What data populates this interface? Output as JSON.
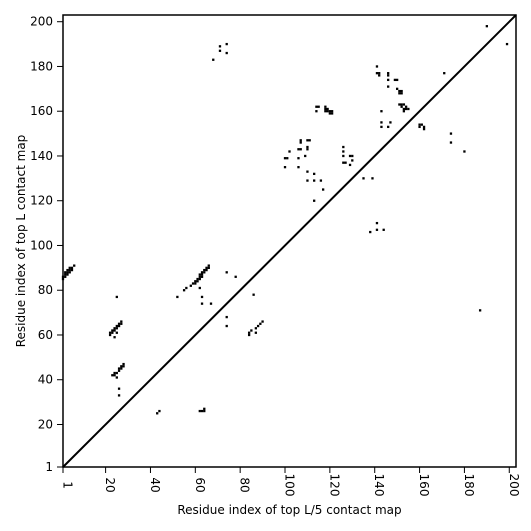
{
  "chart_data": {
    "type": "scatter",
    "xlabel": "Residue index of top L/5 contact map",
    "ylabel": "Residue index of top L contact map",
    "xlim": [
      1,
      203
    ],
    "ylim": [
      1,
      203
    ],
    "xticks": [
      1,
      20,
      40,
      60,
      80,
      100,
      120,
      140,
      160,
      180,
      200
    ],
    "yticks": [
      1,
      20,
      40,
      60,
      80,
      100,
      120,
      140,
      160,
      180,
      200
    ],
    "grid": false,
    "diagonal": true,
    "marker_color": "#000000",
    "series": [
      {
        "points": [
          [
            1,
            85
          ],
          [
            1,
            86
          ],
          [
            2,
            86
          ],
          [
            2,
            87
          ],
          [
            2,
            88
          ],
          [
            3,
            87
          ],
          [
            3,
            88
          ],
          [
            3,
            89
          ],
          [
            4,
            88
          ],
          [
            4,
            89
          ],
          [
            4,
            90
          ],
          [
            5,
            89
          ],
          [
            5,
            90
          ],
          [
            6,
            91
          ],
          [
            22,
            60
          ],
          [
            22,
            61
          ],
          [
            23,
            61
          ],
          [
            23,
            62
          ],
          [
            24,
            62
          ],
          [
            24,
            63
          ],
          [
            24,
            59
          ],
          [
            25,
            63
          ],
          [
            25,
            64
          ],
          [
            26,
            64
          ],
          [
            26,
            65
          ],
          [
            27,
            65
          ],
          [
            27,
            66
          ],
          [
            25,
            61
          ],
          [
            23,
            42
          ],
          [
            24,
            42
          ],
          [
            24,
            43
          ],
          [
            25,
            43
          ],
          [
            25,
            41
          ],
          [
            26,
            44
          ],
          [
            26,
            45
          ],
          [
            27,
            45
          ],
          [
            27,
            46
          ],
          [
            28,
            46
          ],
          [
            28,
            47
          ],
          [
            26,
            36
          ],
          [
            26,
            33
          ],
          [
            25,
            77
          ],
          [
            43,
            25
          ],
          [
            44,
            26
          ],
          [
            52,
            77
          ],
          [
            55,
            80
          ],
          [
            56,
            81
          ],
          [
            58,
            82
          ],
          [
            59,
            83
          ],
          [
            60,
            83
          ],
          [
            60,
            84
          ],
          [
            61,
            84
          ],
          [
            61,
            85
          ],
          [
            62,
            85
          ],
          [
            62,
            86
          ],
          [
            62,
            87
          ],
          [
            63,
            86
          ],
          [
            63,
            87
          ],
          [
            63,
            88
          ],
          [
            64,
            88
          ],
          [
            64,
            89
          ],
          [
            65,
            89
          ],
          [
            65,
            90
          ],
          [
            66,
            90
          ],
          [
            66,
            91
          ],
          [
            62,
            81
          ],
          [
            63,
            77
          ],
          [
            63,
            74
          ],
          [
            67,
            74
          ],
          [
            62,
            26
          ],
          [
            63,
            26
          ],
          [
            64,
            26
          ],
          [
            64,
            27
          ],
          [
            68,
            183
          ],
          [
            71,
            187
          ],
          [
            71,
            189
          ],
          [
            74,
            186
          ],
          [
            74,
            190
          ],
          [
            74,
            88
          ],
          [
            74,
            68
          ],
          [
            74,
            64
          ],
          [
            78,
            86
          ],
          [
            84,
            60
          ],
          [
            84,
            61
          ],
          [
            85,
            62
          ],
          [
            86,
            78
          ],
          [
            87,
            61
          ],
          [
            87,
            63
          ],
          [
            88,
            64
          ],
          [
            89,
            65
          ],
          [
            90,
            66
          ],
          [
            100,
            135
          ],
          [
            100,
            139
          ],
          [
            101,
            139
          ],
          [
            102,
            142
          ],
          [
            106,
            135
          ],
          [
            106,
            139
          ],
          [
            106,
            143
          ],
          [
            107,
            143
          ],
          [
            107,
            146
          ],
          [
            107,
            147
          ],
          [
            110,
            143
          ],
          [
            110,
            144
          ],
          [
            110,
            147
          ],
          [
            111,
            147
          ],
          [
            109,
            140
          ],
          [
            110,
            133
          ],
          [
            110,
            129
          ],
          [
            113,
            129
          ],
          [
            113,
            132
          ],
          [
            114,
            160
          ],
          [
            114,
            162
          ],
          [
            115,
            162
          ],
          [
            113,
            120
          ],
          [
            116,
            129
          ],
          [
            117,
            125
          ],
          [
            118,
            160
          ],
          [
            118,
            161
          ],
          [
            118,
            162
          ],
          [
            119,
            161
          ],
          [
            119,
            160
          ],
          [
            120,
            159
          ],
          [
            120,
            160
          ],
          [
            121,
            159
          ],
          [
            121,
            160
          ],
          [
            126,
            144
          ],
          [
            126,
            142
          ],
          [
            126,
            140
          ],
          [
            126,
            137
          ],
          [
            127,
            137
          ],
          [
            129,
            140
          ],
          [
            130,
            140
          ],
          [
            130,
            138
          ],
          [
            129,
            136
          ],
          [
            135,
            130
          ],
          [
            139,
            130
          ],
          [
            138,
            106
          ],
          [
            141,
            107
          ],
          [
            141,
            110
          ],
          [
            144,
            107
          ],
          [
            141,
            180
          ],
          [
            141,
            177
          ],
          [
            142,
            177
          ],
          [
            142,
            176
          ],
          [
            146,
            177
          ],
          [
            146,
            176
          ],
          [
            146,
            174
          ],
          [
            146,
            171
          ],
          [
            149,
            174
          ],
          [
            150,
            174
          ],
          [
            150,
            170
          ],
          [
            151,
            169
          ],
          [
            151,
            168
          ],
          [
            152,
            169
          ],
          [
            152,
            168
          ],
          [
            143,
            160
          ],
          [
            143,
            155
          ],
          [
            143,
            153
          ],
          [
            146,
            153
          ],
          [
            147,
            155
          ],
          [
            151,
            163
          ],
          [
            152,
            163
          ],
          [
            152,
            162
          ],
          [
            153,
            163
          ],
          [
            153,
            161
          ],
          [
            154,
            162
          ],
          [
            154,
            161
          ],
          [
            155,
            161
          ],
          [
            153,
            160
          ],
          [
            160,
            154
          ],
          [
            160,
            153
          ],
          [
            161,
            154
          ],
          [
            162,
            153
          ],
          [
            162,
            152
          ],
          [
            171,
            177
          ],
          [
            174,
            150
          ],
          [
            174,
            146
          ],
          [
            180,
            142
          ],
          [
            187,
            71
          ],
          [
            190,
            198
          ],
          [
            199,
            190
          ]
        ]
      }
    ]
  }
}
